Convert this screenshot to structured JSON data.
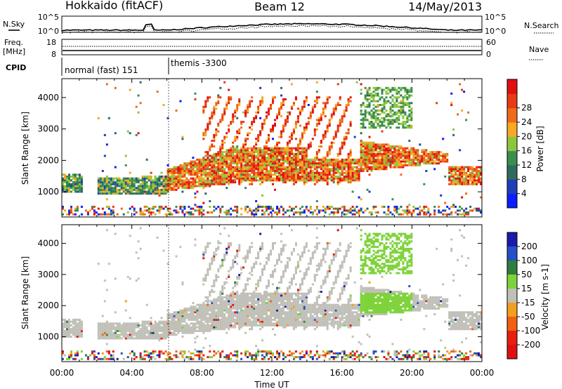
{
  "header": {
    "station": "Hokkaido (fitACF)",
    "beam": "Beam 12",
    "date": "14/May/2013"
  },
  "top_panels": {
    "nsky_label": "N.Sky",
    "nsearch_label": "N.Search",
    "noise_ticks_left": [
      "10^5",
      "10^0"
    ],
    "noise_ticks_right": [
      "10^5",
      "10^0"
    ],
    "freq_label_1": "Freq.",
    "freq_label_2": "[MHz]",
    "freq_ticks": [
      "18",
      "8"
    ],
    "nave_label": "Nave",
    "nave_ticks": [
      "60",
      "0"
    ],
    "cpid_label": "CPID",
    "cpid_segments": [
      {
        "label": "normal (fast) 151",
        "start_hour": 0,
        "end_hour": 6
      },
      {
        "label": "themis -3300",
        "start_hour": 6,
        "end_hour": 24
      }
    ]
  },
  "chart_data": [
    {
      "type": "heatmap",
      "title": "",
      "ylabel": "Slant Range [km]",
      "xlabel": "",
      "xlim": [
        0,
        24
      ],
      "ylim": [
        200,
        4600
      ],
      "yticks": [
        "1000",
        "2000",
        "3000",
        "4000"
      ],
      "colorbar": {
        "label": "Power [dB]",
        "ticks": [
          "4",
          "8",
          "12",
          "16",
          "20",
          "24",
          "28"
        ],
        "colors": [
          "#0a1eff",
          "#1f3fb8",
          "#2e6b5e",
          "#3a8f4e",
          "#8cc63f",
          "#f7a825",
          "#f06a18",
          "#e83a14",
          "#e01010"
        ]
      }
    },
    {
      "type": "heatmap",
      "title": "",
      "ylabel": "Slant Range [km]",
      "xlabel": "Time UT",
      "xlim": [
        0,
        24
      ],
      "ylim": [
        200,
        4600
      ],
      "yticks": [
        "1000",
        "2000",
        "3000",
        "4000"
      ],
      "xticks": [
        "00:00",
        "04:00",
        "08:00",
        "12:00",
        "16:00",
        "20:00",
        "00:00"
      ],
      "colorbar": {
        "label": "Velocity [m s-1]",
        "ticks": [
          "200",
          "100",
          "50",
          "15",
          "-15",
          "-50",
          "-100",
          "-200"
        ],
        "colors": [
          "#1a1aaa",
          "#2550c8",
          "#2e7e3e",
          "#7ed23a",
          "#c0c0b8",
          "#f0a020",
          "#f06010",
          "#e82010",
          "#e01010"
        ]
      }
    }
  ]
}
